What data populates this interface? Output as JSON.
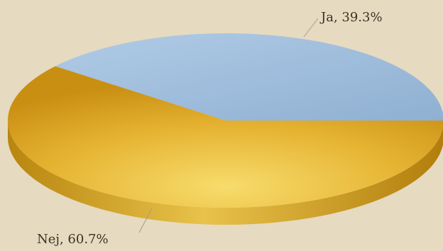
{
  "chart_data": {
    "type": "pie",
    "title": "",
    "slices": [
      {
        "label": "Ja",
        "value": 39.3,
        "display": "Ja, 39.3%",
        "color": "#9dbbd9"
      },
      {
        "label": "Nej",
        "value": 60.7,
        "display": "Nej, 60.7%",
        "color": "#e2ab2c"
      }
    ],
    "legend": "none",
    "style": "3d"
  }
}
